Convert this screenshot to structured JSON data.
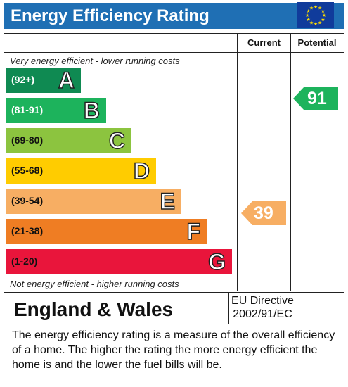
{
  "header": {
    "title": "Energy Efficiency Rating",
    "bg_color": "#1f6fb4"
  },
  "columns": {
    "current": "Current",
    "potential": "Potential"
  },
  "notes": {
    "top": "Very energy efficient - lower running costs",
    "bottom": "Not energy efficient - higher running costs"
  },
  "bands": [
    {
      "range": "(92+)",
      "letter": "A",
      "color": "#0f8a52",
      "range_color": "#ffffff"
    },
    {
      "range": "(81-91)",
      "letter": "B",
      "color": "#1db35c",
      "range_color": "#ffffff"
    },
    {
      "range": "(69-80)",
      "letter": "C",
      "color": "#8cc43f",
      "range_color": "#111111"
    },
    {
      "range": "(55-68)",
      "letter": "D",
      "color": "#ffcc00",
      "range_color": "#111111"
    },
    {
      "range": "(39-54)",
      "letter": "E",
      "color": "#f7ae63",
      "range_color": "#111111"
    },
    {
      "range": "(21-38)",
      "letter": "F",
      "color": "#ef7d23",
      "range_color": "#111111"
    },
    {
      "range": "(1-20)",
      "letter": "G",
      "color": "#e9153b",
      "range_color": "#111111"
    }
  ],
  "current_rating": {
    "value": "39",
    "color": "#f7ae63"
  },
  "potential_rating": {
    "value": "91",
    "color": "#1db35c"
  },
  "footer": {
    "region": "England & Wales",
    "directive_line1": "EU Directive",
    "directive_line2": "2002/91/EC",
    "flag_icon": "eu-flag-icon"
  },
  "description": "The energy efficiency rating is a measure of the overall efficiency of a home.  The higher the rating the more energy efficient the home is and the lower the fuel bills will be."
}
